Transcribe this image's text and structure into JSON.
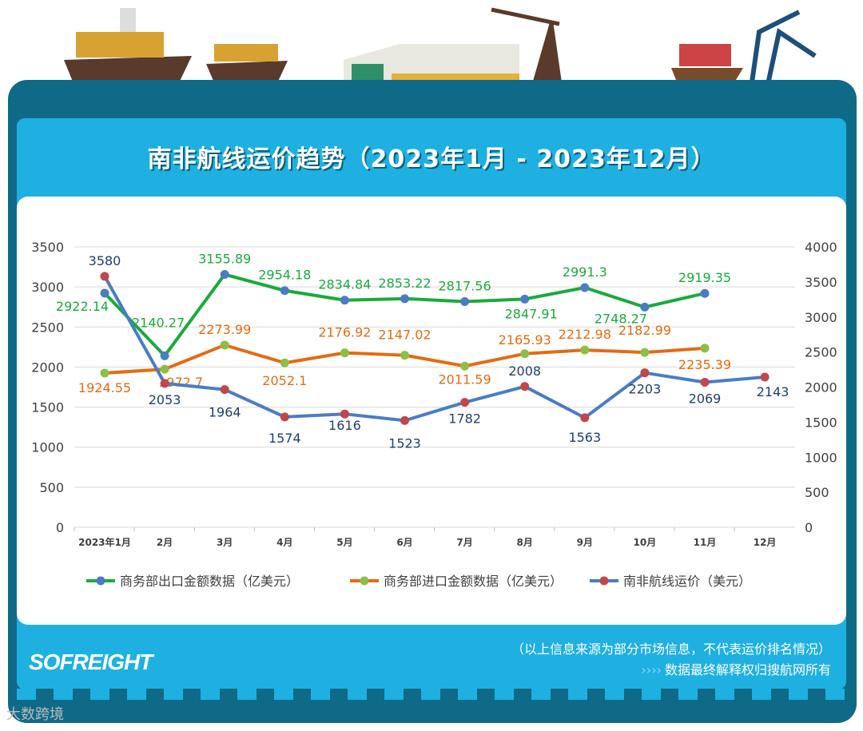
{
  "title": "南非航线运价趋势（2023年1月 - 2023年12月）",
  "colors": {
    "export_line": "#1aaa3c",
    "export_marker": "#4a7cc4",
    "import_line": "#e46b12",
    "import_marker": "#8cbf48",
    "freight_line": "#4a7cc4",
    "freight_marker": "#c0474a",
    "export_label": "#1aaa3c",
    "import_label": "#e46b12",
    "freight_label": "#1f3d73"
  },
  "chart_data": {
    "type": "line",
    "categories": [
      "2023年1月",
      "2月",
      "3月",
      "4月",
      "5月",
      "6月",
      "7月",
      "8月",
      "9月",
      "10月",
      "11月",
      "12月"
    ],
    "y_left": {
      "range": [
        0,
        3500
      ],
      "ticks": [
        "0",
        "500",
        "1000",
        "1500",
        "2000",
        "2500",
        "3000",
        "3500"
      ]
    },
    "y_right": {
      "range": [
        0,
        4000
      ],
      "ticks": [
        "0",
        "500",
        "1000",
        "1500",
        "2000",
        "2500",
        "3000",
        "3500",
        "4000"
      ]
    },
    "grid": true,
    "legend_position": "bottom",
    "series": [
      {
        "name": "商务部出口金额数据（亿美元）",
        "axis": "left",
        "values": [
          2922.14,
          2140.27,
          3155.89,
          2954.18,
          2834.84,
          2853.22,
          2817.56,
          2847.91,
          2991.3,
          2748.27,
          2919.35,
          null
        ],
        "labels": [
          "2922.14",
          "2140.27",
          "3155.89",
          "2954.18",
          "2834.84",
          "2853.22",
          "2817.56",
          "2847.91",
          "2991.3",
          "2748.27",
          "2919.35",
          ""
        ]
      },
      {
        "name": "商务部进口金额数据（亿美元）",
        "axis": "left",
        "values": [
          1924.55,
          1972.7,
          2273.99,
          2052.1,
          2176.92,
          2147.02,
          2011.59,
          2165.93,
          2212.98,
          2182.99,
          2235.39,
          null
        ],
        "labels": [
          "1924.55",
          "1972.7",
          "2273.99",
          "2052.1",
          "2176.92",
          "2147.02",
          "2011.59",
          "2165.93",
          "2212.98",
          "2182.99",
          "2235.39",
          ""
        ]
      },
      {
        "name": "南非航线运价（美元）",
        "axis": "right",
        "values": [
          3580,
          2053,
          1964,
          1574,
          1616,
          1523,
          1782,
          2008,
          1563,
          2203,
          2069,
          2143
        ],
        "labels": [
          "3580",
          "2053",
          "1964",
          "1574",
          "1616",
          "1523",
          "1782",
          "2008",
          "1563",
          "2203",
          "2069",
          "2143"
        ]
      }
    ]
  },
  "footer": {
    "logo": "SOFREIGHT",
    "note": "（以上信息来源为部分市场信息，不代表运价排名情况）",
    "arrows": "››››",
    "rights": "数据最终解释权归搜航网所有"
  },
  "watermark": "大数跨境"
}
